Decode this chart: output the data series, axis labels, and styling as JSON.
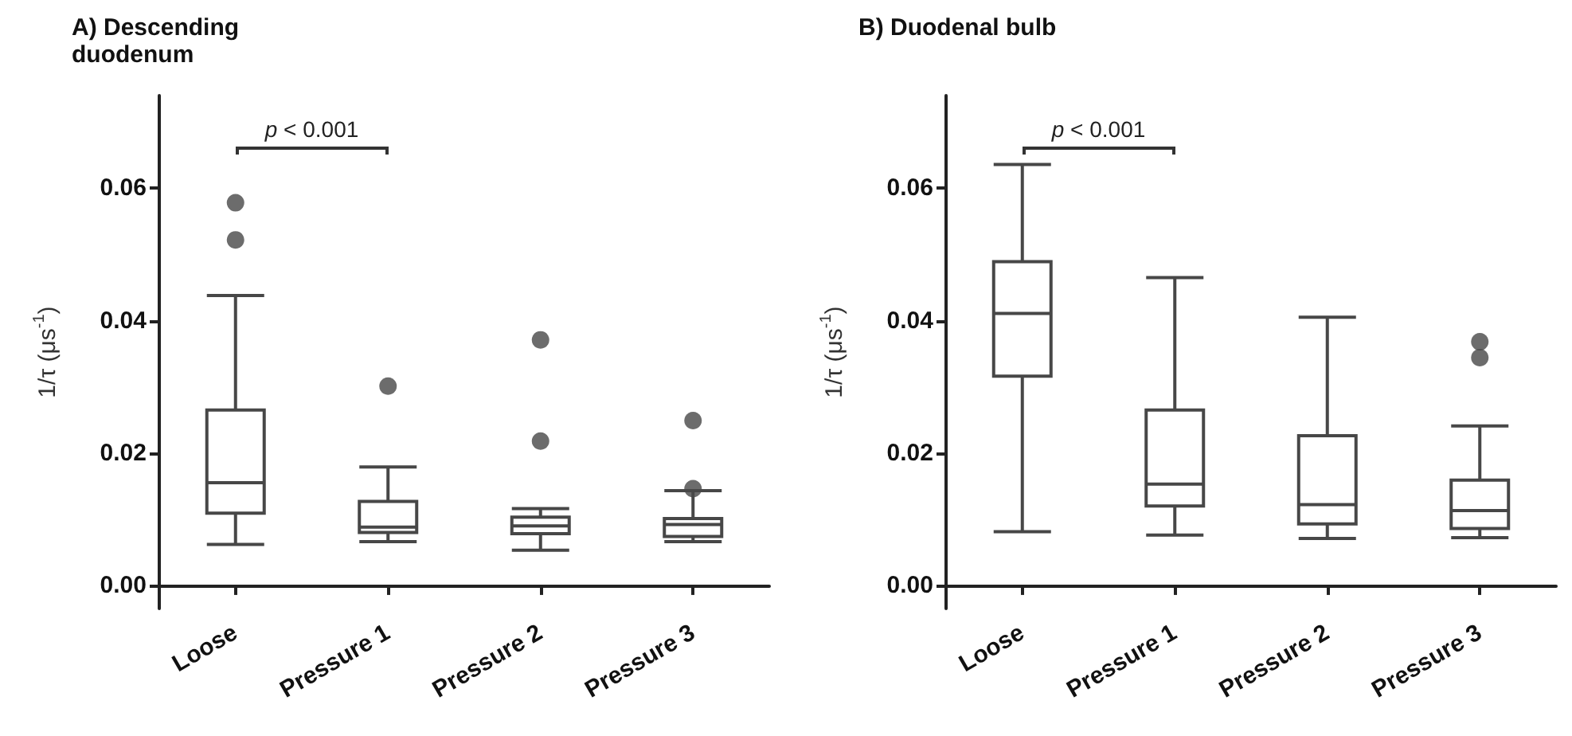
{
  "chart_data": [
    {
      "type": "box",
      "title": "A) Descending duodenum",
      "ylabel": "1/τ (μs$^{-1}$)",
      "categories": [
        "Loose",
        "Pressure 1",
        "Pressure 2",
        "Pressure 3"
      ],
      "boxes": [
        {
          "low": 0.0062,
          "q1": 0.0109,
          "median": 0.0155,
          "q3": 0.0265,
          "high": 0.0438,
          "outliers": [
            0.0578,
            0.0522
          ]
        },
        {
          "low": 0.0066,
          "q1": 0.008,
          "median": 0.0088,
          "q3": 0.0127,
          "high": 0.0179,
          "outliers": [
            0.0301
          ]
        },
        {
          "low": 0.0053,
          "q1": 0.0078,
          "median": 0.009,
          "q3": 0.0103,
          "high": 0.0116,
          "outliers": [
            0.0371,
            0.0218
          ]
        },
        {
          "low": 0.0066,
          "q1": 0.0074,
          "median": 0.0092,
          "q3": 0.0101,
          "high": 0.0143,
          "outliers": [
            0.0249,
            0.0146
          ]
        }
      ],
      "color": "#474747",
      "ylim": [
        -0.0035,
        0.074
      ],
      "yticks": [
        {
          "value": 0,
          "label": "0.00"
        },
        {
          "value": 0.02,
          "label": "0.02"
        },
        {
          "value": 0.04,
          "label": "0.04"
        },
        {
          "value": 0.06,
          "label": "0.06"
        }
      ],
      "grid": false,
      "annotations": [
        "p < 0.001"
      ]
    },
    {
      "type": "box",
      "title": "B) Duodenal bulb",
      "ylabel": "1/τ (μs$^{-1}$)",
      "categories": [
        "Loose",
        "Pressure 1",
        "Pressure 2",
        "Pressure 3"
      ],
      "boxes": [
        {
          "low": 0.0081,
          "q1": 0.0316,
          "median": 0.0411,
          "q3": 0.0489,
          "high": 0.0636
        },
        {
          "low": 0.0076,
          "q1": 0.012,
          "median": 0.0153,
          "q3": 0.0265,
          "high": 0.0465
        },
        {
          "low": 0.0071,
          "q1": 0.0093,
          "median": 0.0122,
          "q3": 0.0226,
          "high": 0.0405
        },
        {
          "low": 0.0072,
          "q1": 0.0086,
          "median": 0.0113,
          "q3": 0.0159,
          "high": 0.0241,
          "outliers": [
            0.0368,
            0.0344
          ]
        }
      ],
      "color": "#474747",
      "ylim": [
        -0.0035,
        0.074
      ],
      "yticks": [
        {
          "value": 0,
          "label": "0.00"
        },
        {
          "value": 0.02,
          "label": "0.02"
        },
        {
          "value": 0.04,
          "label": "0.04"
        },
        {
          "value": 0.06,
          "label": "0.06"
        }
      ],
      "grid": false,
      "annotations": [
        "p < 0.001"
      ]
    }
  ]
}
